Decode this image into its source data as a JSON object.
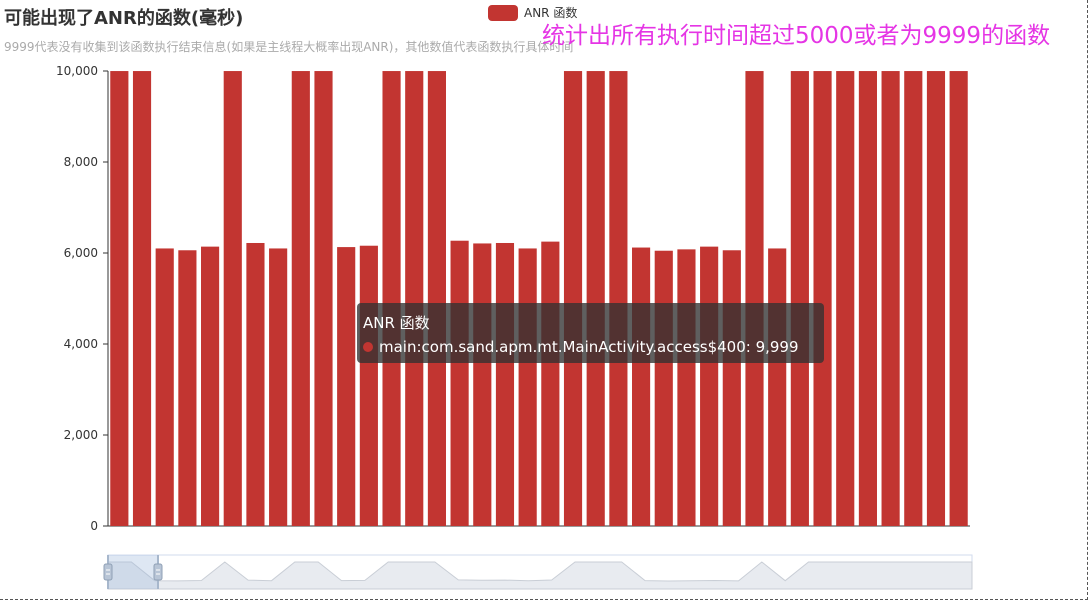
{
  "title": "可能出现了ANR的函数(毫秒)",
  "subtitle": "9999代表没有收集到该函数执行结束信息(如果是主线程大概率出现ANR)，其他数值代表函数执行具体时间",
  "annotation": "统计出所有执行时间超过5000或者为9999的函数",
  "colors": {
    "bar": "#c23531",
    "axis": "#333333",
    "grid": "#dddddd"
  },
  "tooltip": {
    "series": "ANR 函数",
    "item_label": "main:com.sand.apm.mt.MainActivity.access$400",
    "item_value": "9,999"
  },
  "chart_data": {
    "type": "bar",
    "title": "可能出现了ANR的函数(毫秒)",
    "legend": {
      "position": "top-center",
      "entries": [
        "ANR 函数"
      ]
    },
    "series": [
      {
        "name": "ANR 函数",
        "values": [
          9999,
          9999,
          6100,
          6060,
          6140,
          9999,
          6220,
          6100,
          9999,
          9999,
          6130,
          6160,
          9999,
          9999,
          9999,
          6270,
          6210,
          6220,
          6100,
          6250,
          9999,
          9999,
          9999,
          6120,
          6050,
          6080,
          6140,
          6060,
          9999,
          6100,
          9999,
          9999,
          9999,
          9999,
          9999,
          9999,
          9999,
          9999
        ]
      }
    ],
    "ylim": [
      0,
      10000
    ],
    "yticks": [
      {
        "value": 0,
        "label": "0"
      },
      {
        "value": 2000,
        "label": "2,000"
      },
      {
        "value": 4000,
        "label": "4,000"
      },
      {
        "value": 6000,
        "label": "6,000"
      },
      {
        "value": 8000,
        "label": "8,000"
      },
      {
        "value": 10000,
        "label": "10,000"
      }
    ],
    "xlabel": "",
    "ylabel": "",
    "grid": false,
    "datazoom": true
  }
}
